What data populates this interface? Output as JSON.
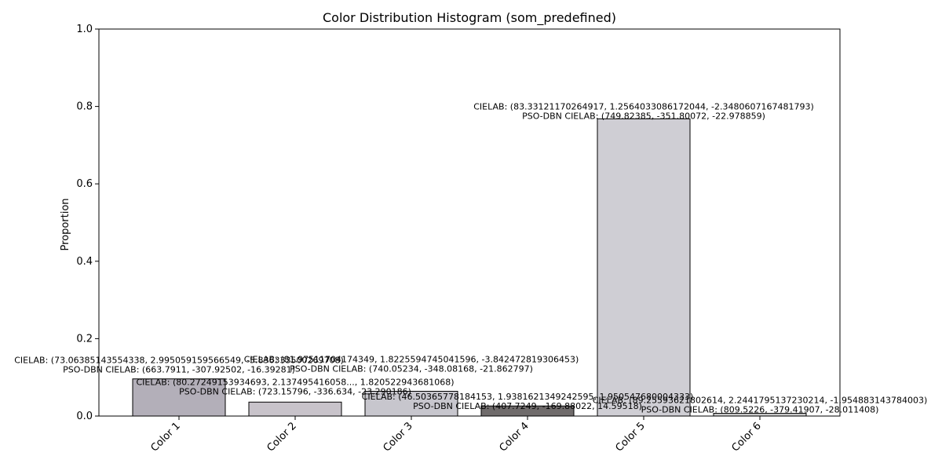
{
  "chart_data": {
    "type": "bar",
    "title": "Color Distribution Histogram (som_predefined)",
    "xlabel": "",
    "ylabel": "Proportion",
    "ylim": [
      0,
      1.0
    ],
    "yticks": [
      "0.0",
      "0.2",
      "0.4",
      "0.6",
      "0.8",
      "1.0"
    ],
    "categories": [
      "Color 1",
      "Color 2",
      "Color 3",
      "Color 4",
      "Color 5",
      "Color 6"
    ],
    "values": [
      0.096,
      0.036,
      0.064,
      0.026,
      0.768,
      0.007
    ],
    "colors": [
      "#b3afb9",
      "#c8c3ca",
      "#c7c6cd",
      "#6f6b6b",
      "#cfced4",
      "#cacaca"
    ],
    "annotations": [
      {
        "line1": "CIELAB: (73.06385143554338, 2.995059159566549, -5.836333500269708)",
        "line2": "PSO-DBN CIELAB: (663.7911, -307.92502, -16.39281)"
      },
      {
        "line1": "CIELAB: (80.27249153934693, 2.137495416058..., 1.820522943681068)",
        "line2": "PSO-DBN CIELAB: (723.15796, -336.634, -23.290186)"
      },
      {
        "line1": "CIELAB: (81.97511704174349, 1.8225594745041596, -3.842472819306453)",
        "line2": "PSO-DBN CIELAB: (740.05234, -348.08168, -21.862797)"
      },
      {
        "line1": "CIELAB: (46.50365778184153, 1.9381621349242595, 1.950547680004333)",
        "line2": "PSO-DBN CIELAB: (407.7249, -169.88022, 14.59518)"
      },
      {
        "line1": "CIELAB: (83.33121170264917, 1.2564033086172044, -2.3480607167481793)",
        "line2": "PSO-DBN CIELAB: (749.82385, -351.80072, -22.978859)"
      },
      {
        "line1": "CIELAB: (89.25593621802614, 2.2441795137230214, -1.954883143784003)",
        "line2": "PSO-DBN CIELAB: (809.5226, -379.41907, -28.011408)"
      }
    ]
  }
}
